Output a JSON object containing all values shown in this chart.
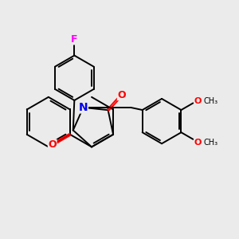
{
  "bg_color": "#ebebeb",
  "bond_color": "#000000",
  "o_color": "#ff0000",
  "n_color": "#0000ee",
  "f_color": "#ff00ff",
  "lw": 1.4,
  "font_size": 9,
  "xlim": [
    -4.5,
    5.0
  ],
  "ylim": [
    -3.5,
    4.0
  ]
}
